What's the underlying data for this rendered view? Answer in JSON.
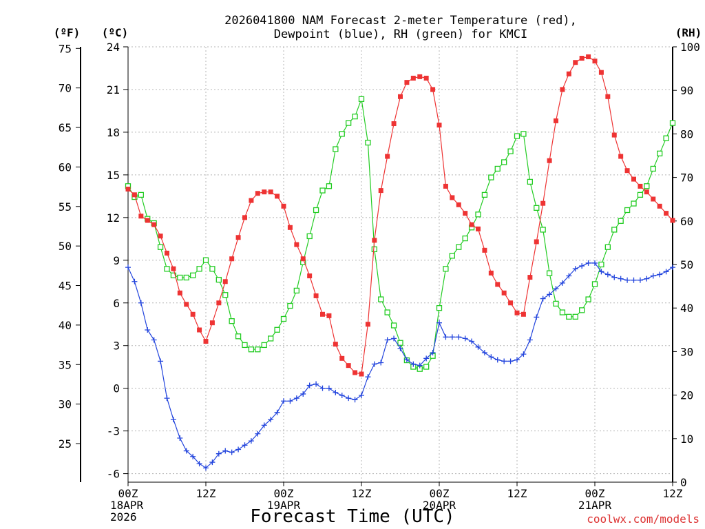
{
  "chart_data": {
    "type": "line",
    "title_line1": "2026041800 NAM Forecast 2-meter Temperature (red),",
    "title_line2": "Dewpoint (blue), RH (green) for KMCI",
    "xlabel": "Forecast Time (UTC)",
    "credit": "coolwx.com/models",
    "x_unit": "hours",
    "x_range": [
      0,
      84
    ],
    "x_ticks": [
      {
        "hour": 0,
        "lines": [
          "00Z",
          "18APR",
          "2026"
        ]
      },
      {
        "hour": 12,
        "lines": [
          "12Z"
        ]
      },
      {
        "hour": 24,
        "lines": [
          "00Z",
          "19APR"
        ]
      },
      {
        "hour": 36,
        "lines": [
          "12Z"
        ]
      },
      {
        "hour": 48,
        "lines": [
          "00Z",
          "20APR"
        ]
      },
      {
        "hour": 60,
        "lines": [
          "12Z"
        ]
      },
      {
        "hour": 72,
        "lines": [
          "00Z",
          "21APR"
        ]
      },
      {
        "hour": 84,
        "lines": [
          "12Z"
        ]
      }
    ],
    "axes": {
      "fahrenheit": {
        "label": "(ºF)",
        "ticks": [
          "75",
          "70",
          "65",
          "60",
          "55",
          "50",
          "45",
          "40",
          "35",
          "30",
          "25"
        ]
      },
      "celsius": {
        "label": "(ºC)",
        "range": [
          -6.6,
          24
        ],
        "ticks": [
          "24",
          "21",
          "18",
          "15",
          "12",
          "9",
          "6",
          "3",
          "0",
          "-3",
          "-6"
        ]
      },
      "rh": {
        "label": "(RH)",
        "range": [
          0,
          100
        ],
        "ticks": [
          "100",
          "90",
          "80",
          "70",
          "60",
          "50",
          "40",
          "30",
          "20",
          "10",
          "0"
        ]
      }
    },
    "series": [
      {
        "name": "2-meter Temperature",
        "unit": "C",
        "axis": "celsius",
        "color": "#ee3333",
        "marker": "filled-square",
        "x": [
          0,
          1,
          2,
          3,
          4,
          5,
          6,
          7,
          8,
          9,
          10,
          11,
          12,
          13,
          14,
          15,
          16,
          17,
          18,
          19,
          20,
          21,
          22,
          23,
          24,
          25,
          26,
          27,
          28,
          29,
          30,
          31,
          32,
          33,
          34,
          35,
          36,
          37,
          38,
          39,
          40,
          41,
          42,
          43,
          44,
          45,
          46,
          47,
          48,
          49,
          50,
          51,
          52,
          53,
          54,
          55,
          56,
          57,
          58,
          59,
          60,
          61,
          62,
          63,
          64,
          65,
          66,
          67,
          68,
          69,
          70,
          71,
          72,
          73,
          74,
          75,
          76,
          77,
          78,
          79,
          80,
          81,
          82,
          83,
          84
        ],
        "values": [
          14.0,
          13.6,
          12.1,
          11.8,
          11.5,
          10.7,
          9.5,
          8.4,
          6.7,
          5.9,
          5.2,
          4.1,
          3.3,
          4.6,
          6.0,
          7.5,
          9.1,
          10.6,
          12.0,
          13.2,
          13.7,
          13.8,
          13.8,
          13.5,
          12.8,
          11.3,
          10.1,
          9.1,
          7.9,
          6.5,
          5.2,
          5.1,
          3.1,
          2.1,
          1.6,
          1.1,
          1.0,
          4.5,
          10.4,
          13.9,
          16.3,
          18.6,
          20.5,
          21.5,
          21.8,
          21.9,
          21.8,
          21.0,
          18.5,
          14.2,
          13.4,
          12.9,
          12.3,
          11.5,
          11.2,
          9.7,
          8.1,
          7.3,
          6.7,
          6.0,
          5.3,
          5.2,
          7.8,
          10.3,
          13.0,
          16.0,
          18.8,
          21.0,
          22.1,
          22.9,
          23.2,
          23.3,
          23.0,
          22.2,
          20.5,
          17.8,
          16.3,
          15.3,
          14.7,
          14.2,
          13.8,
          13.3,
          12.8,
          12.3,
          11.8
        ]
      },
      {
        "name": "Dewpoint",
        "unit": "C",
        "axis": "celsius",
        "color": "#2244dd",
        "marker": "plus",
        "x": [
          0,
          1,
          2,
          3,
          4,
          5,
          6,
          7,
          8,
          9,
          10,
          11,
          12,
          13,
          14,
          15,
          16,
          17,
          18,
          19,
          20,
          21,
          22,
          23,
          24,
          25,
          26,
          27,
          28,
          29,
          30,
          31,
          32,
          33,
          34,
          35,
          36,
          37,
          38,
          39,
          40,
          41,
          42,
          43,
          44,
          45,
          46,
          47,
          48,
          49,
          50,
          51,
          52,
          53,
          54,
          55,
          56,
          57,
          58,
          59,
          60,
          61,
          62,
          63,
          64,
          65,
          66,
          67,
          68,
          69,
          70,
          71,
          72,
          73,
          74,
          75,
          76,
          77,
          78,
          79,
          80,
          81,
          82,
          83,
          84
        ],
        "values": [
          8.5,
          7.5,
          6.0,
          4.1,
          3.4,
          1.9,
          -0.7,
          -2.2,
          -3.5,
          -4.4,
          -4.8,
          -5.3,
          -5.6,
          -5.2,
          -4.6,
          -4.4,
          -4.5,
          -4.3,
          -4.0,
          -3.7,
          -3.2,
          -2.6,
          -2.2,
          -1.7,
          -0.9,
          -0.9,
          -0.7,
          -0.4,
          0.2,
          0.3,
          0.0,
          0.0,
          -0.3,
          -0.5,
          -0.7,
          -0.8,
          -0.5,
          0.8,
          1.7,
          1.8,
          3.4,
          3.5,
          2.8,
          2.0,
          1.7,
          1.6,
          2.1,
          2.5,
          4.6,
          3.6,
          3.6,
          3.6,
          3.5,
          3.3,
          2.9,
          2.5,
          2.2,
          2.0,
          1.9,
          1.9,
          2.0,
          2.4,
          3.4,
          5.0,
          6.3,
          6.6,
          7.0,
          7.4,
          7.9,
          8.4,
          8.6,
          8.8,
          8.8,
          8.2,
          8.0,
          7.8,
          7.7,
          7.6,
          7.6,
          7.6,
          7.7,
          7.9,
          8.0,
          8.2,
          8.5
        ]
      },
      {
        "name": "Relative Humidity",
        "unit": "%",
        "axis": "rh",
        "color": "#22cc22",
        "marker": "open-square",
        "x": [
          0,
          1,
          2,
          3,
          4,
          5,
          6,
          7,
          8,
          9,
          10,
          11,
          12,
          13,
          14,
          15,
          16,
          17,
          18,
          19,
          20,
          21,
          22,
          23,
          24,
          25,
          26,
          27,
          28,
          29,
          30,
          31,
          32,
          33,
          34,
          35,
          36,
          37,
          38,
          39,
          40,
          41,
          42,
          43,
          44,
          45,
          46,
          47,
          48,
          49,
          50,
          51,
          52,
          53,
          54,
          55,
          56,
          57,
          58,
          59,
          60,
          61,
          62,
          63,
          64,
          65,
          66,
          67,
          68,
          69,
          70,
          71,
          72,
          73,
          74,
          75,
          76,
          77,
          78,
          79,
          80,
          81,
          82,
          83,
          84
        ],
        "values": [
          68,
          65.5,
          66,
          60.5,
          59.5,
          54,
          49,
          47.5,
          47,
          47,
          47.5,
          49,
          51,
          49,
          46.5,
          43,
          37,
          33.5,
          31.5,
          30.5,
          30.5,
          31.5,
          33,
          35,
          37.5,
          40.5,
          44,
          50.5,
          56.5,
          62.5,
          67,
          68,
          76.5,
          80,
          82.5,
          84,
          88,
          78,
          53.5,
          42,
          39,
          36,
          32,
          28,
          26.5,
          26,
          26.5,
          29,
          40,
          49,
          52,
          54,
          56,
          58.5,
          61.5,
          66,
          70,
          72,
          73.5,
          76,
          79.5,
          80,
          69,
          63,
          58,
          48,
          41,
          39,
          38,
          38,
          39.5,
          42,
          45.5,
          50,
          54,
          58,
          60,
          62.5,
          64,
          66,
          68,
          72,
          75.5,
          79,
          82.5
        ]
      }
    ]
  }
}
